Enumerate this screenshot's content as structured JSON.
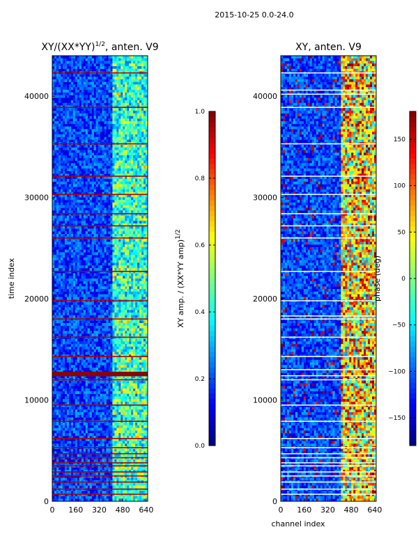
{
  "suptitle": "2015-10-25 0.0-24.0",
  "chart_data": [
    {
      "type": "heatmap",
      "title": "XY/(XX*YY)^1/2, anten. V9",
      "title_main": "XY/(XX*YY)",
      "title_sup": "1/2",
      "title_tail": ", anten. V9",
      "xlabel": "",
      "ylabel": "time index",
      "xlim": [
        0,
        650
      ],
      "ylim": [
        0,
        44000
      ],
      "xticks": [
        0,
        160,
        320,
        480,
        640
      ],
      "yticks": [
        0,
        10000,
        20000,
        30000,
        40000
      ],
      "colormap": "jet",
      "colorbar": {
        "label": "XY amp. / (XX*YY amp)^1/2",
        "label_main": "XY amp. / (XX*YY amp)",
        "label_sup": "1/2",
        "range": [
          0.0,
          1.0
        ],
        "ticks": [
          0.0,
          0.2,
          0.4,
          0.6,
          0.8,
          1.0
        ],
        "tick_labels": [
          "0.0",
          "0.2",
          "0.4",
          "0.6",
          "0.8",
          "1.0"
        ]
      },
      "high_channel_range": [
        410,
        640
      ],
      "flagged_rows": [
        700,
        1200,
        1900,
        2500,
        2900,
        3500,
        3800,
        4300,
        4700,
        5300,
        6200,
        7900,
        9500,
        12000,
        12400,
        12600,
        14300,
        16200,
        18000,
        19800,
        22700,
        26000,
        27200,
        28400,
        30300,
        32100,
        35300,
        38900,
        42300
      ]
    },
    {
      "type": "heatmap",
      "title": "XY, anten. V9",
      "xlabel": "channel index",
      "ylabel": "",
      "xlim": [
        0,
        650
      ],
      "ylim": [
        0,
        44000
      ],
      "xticks": [
        0,
        160,
        320,
        480,
        640
      ],
      "yticks": [
        0,
        10000,
        20000,
        30000,
        40000
      ],
      "colormap": "jet",
      "colorbar": {
        "label": "phase (deg)",
        "range": [
          -180,
          180
        ],
        "ticks": [
          -150,
          -100,
          -50,
          0,
          50,
          100,
          150
        ],
        "tick_labels": [
          "−150",
          "−100",
          "−50",
          "0",
          "50",
          "100",
          "150"
        ]
      },
      "high_channel_range": [
        410,
        640
      ],
      "flagged_rows": [
        700,
        1200,
        1900,
        2500,
        2900,
        3500,
        3800,
        4300,
        4700,
        5300,
        6200,
        7900,
        9500,
        12000,
        12400,
        13000,
        14300,
        16200,
        18000,
        18300,
        19800,
        22700,
        26000,
        27200,
        28400,
        30300,
        32100,
        35300,
        38900,
        40200,
        40600,
        42300
      ]
    }
  ]
}
